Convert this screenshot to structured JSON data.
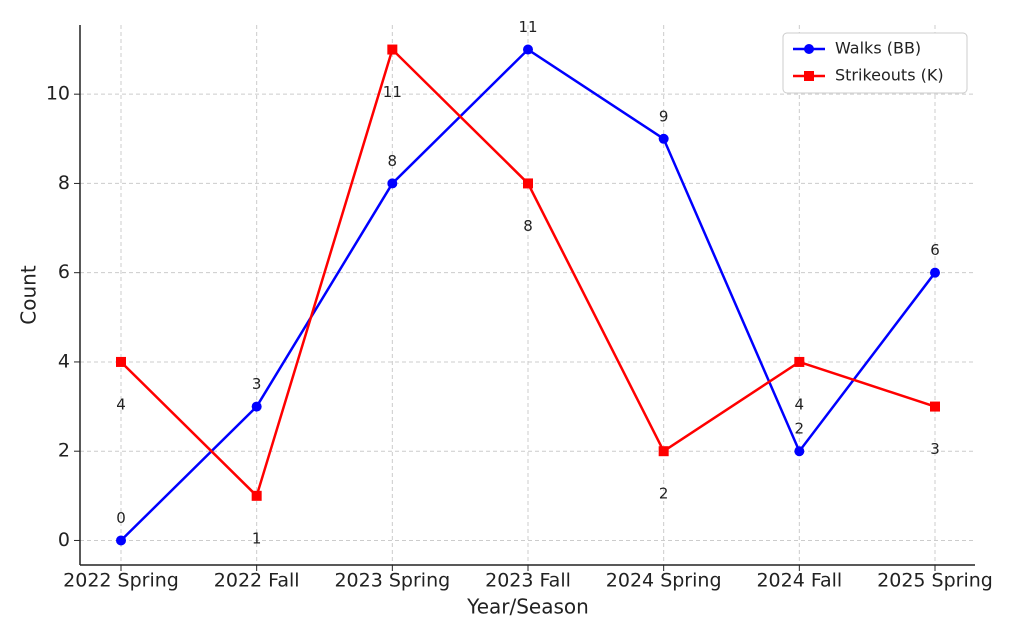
{
  "chart_data": {
    "type": "line",
    "x_label": "Year/Season",
    "y_label": "Count",
    "categories": [
      "2022 Spring",
      "2022 Fall",
      "2023 Spring",
      "2023 Fall",
      "2024 Spring",
      "2024 Fall",
      "2025 Spring"
    ],
    "series": [
      {
        "name": "Walks (BB)",
        "color": "#0000ff",
        "marker": "circle",
        "values": [
          0,
          3,
          8,
          11,
          9,
          2,
          6
        ]
      },
      {
        "name": "Strikeouts (K)",
        "color": "#ff0000",
        "marker": "square",
        "values": [
          4,
          1,
          11,
          8,
          2,
          4,
          3
        ]
      }
    ],
    "ylim": [
      -0.55,
      11.55
    ],
    "yticks": [
      0,
      2,
      4,
      6,
      8,
      10
    ],
    "grid": true,
    "legend": "upper right"
  }
}
